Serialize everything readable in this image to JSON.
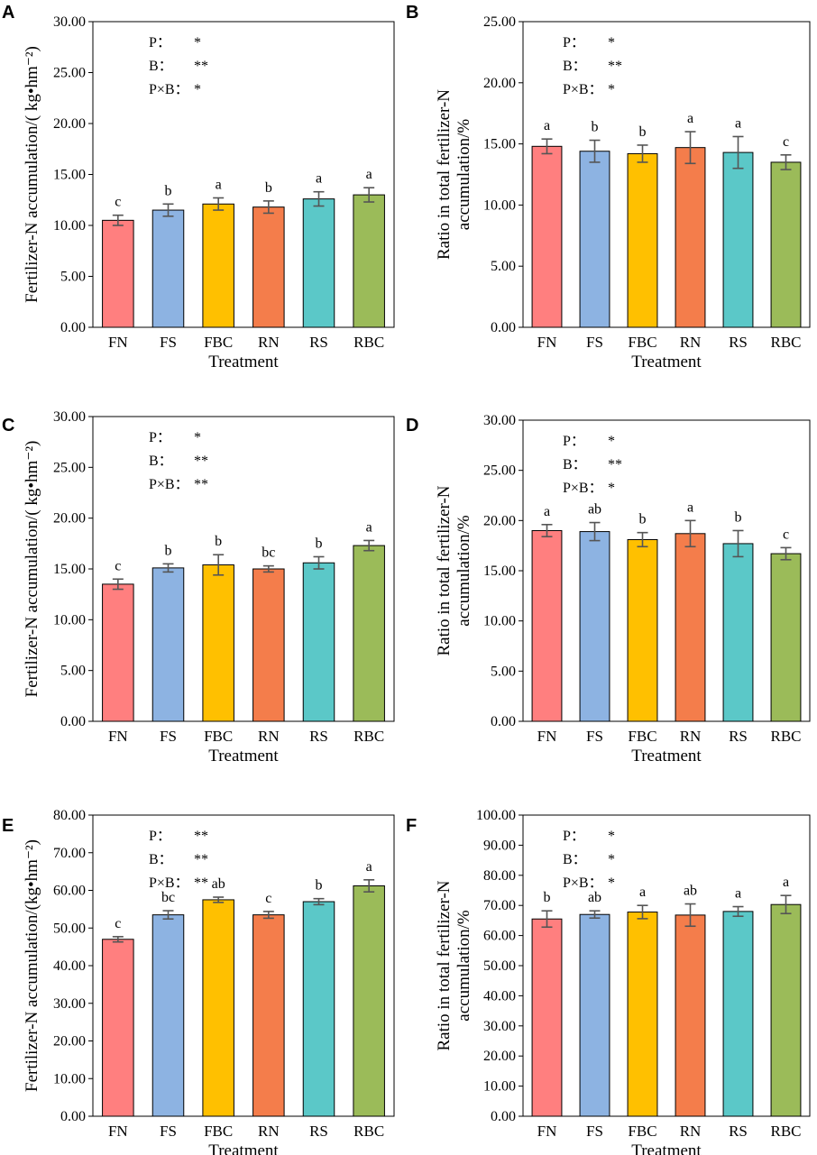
{
  "colors": {
    "FN": "#FF7F7F",
    "FS": "#8DB3E2",
    "FBC": "#FFC000",
    "RN": "#F47D4B",
    "RS": "#5BC8C8",
    "RBC": "#9BBB59",
    "error": "#555555",
    "frame": "#000000"
  },
  "chart_data": [
    {
      "panel": "A",
      "type": "bar",
      "categories": [
        "FN",
        "FS",
        "FBC",
        "RN",
        "RS",
        "RBC"
      ],
      "values": [
        10.5,
        11.5,
        12.1,
        11.8,
        12.6,
        13.0
      ],
      "errors": [
        0.5,
        0.6,
        0.6,
        0.6,
        0.7,
        0.7
      ],
      "letters": [
        "c",
        "b",
        "a",
        "b",
        "a",
        "a"
      ],
      "ylim": [
        0,
        30
      ],
      "yticks": [
        "0.00",
        "5.00",
        "10.00",
        "15.00",
        "20.00",
        "25.00",
        "30.00"
      ],
      "ylabel": "Fertilizer-N accumulation/( kg•hm⁻²)",
      "xlabel": "Treatment",
      "stats": [
        {
          "label": "P：",
          "value": "*"
        },
        {
          "label": "B：",
          "value": "**"
        },
        {
          "label": "P×B：",
          "value": "*"
        }
      ]
    },
    {
      "panel": "B",
      "type": "bar",
      "categories": [
        "FN",
        "FS",
        "FBC",
        "RN",
        "RS",
        "RBC"
      ],
      "values": [
        14.8,
        14.4,
        14.2,
        14.7,
        14.3,
        13.5
      ],
      "errors": [
        0.6,
        0.9,
        0.7,
        1.3,
        1.3,
        0.6
      ],
      "letters": [
        "a",
        "b",
        "b",
        "a",
        "a",
        "c"
      ],
      "ylim": [
        0,
        25
      ],
      "yticks": [
        "0.00",
        "5.00",
        "10.00",
        "15.00",
        "20.00",
        "25.00"
      ],
      "ylabel": "Ratio in total fertilizer-N accumulation/%",
      "xlabel": "Treatment",
      "stats": [
        {
          "label": "P：",
          "value": "*"
        },
        {
          "label": "B：",
          "value": "**"
        },
        {
          "label": "P×B：",
          "value": "*"
        }
      ]
    },
    {
      "panel": "C",
      "type": "bar",
      "categories": [
        "FN",
        "FS",
        "FBC",
        "RN",
        "RS",
        "RBC"
      ],
      "values": [
        13.5,
        15.1,
        15.4,
        15.0,
        15.6,
        17.3
      ],
      "errors": [
        0.5,
        0.4,
        1.0,
        0.3,
        0.6,
        0.5
      ],
      "letters": [
        "c",
        "b",
        "b",
        "bc",
        "b",
        "a"
      ],
      "ylim": [
        0,
        30
      ],
      "yticks": [
        "0.00",
        "5.00",
        "10.00",
        "15.00",
        "20.00",
        "25.00",
        "30.00"
      ],
      "ylabel": "Fertilizer-N accumulation/( kg•hm⁻²)",
      "xlabel": "Treatment",
      "stats": [
        {
          "label": "P：",
          "value": "*"
        },
        {
          "label": "B：",
          "value": "**"
        },
        {
          "label": "P×B：",
          "value": "**"
        }
      ]
    },
    {
      "panel": "D",
      "type": "bar",
      "categories": [
        "FN",
        "FS",
        "FBC",
        "RN",
        "RS",
        "RBC"
      ],
      "values": [
        19.0,
        18.9,
        18.1,
        18.7,
        17.7,
        16.7
      ],
      "errors": [
        0.6,
        0.9,
        0.7,
        1.3,
        1.3,
        0.6
      ],
      "letters": [
        "a",
        "ab",
        "b",
        "a",
        "b",
        "c"
      ],
      "ylim": [
        0,
        30
      ],
      "yticks": [
        "0.00",
        "5.00",
        "10.00",
        "15.00",
        "20.00",
        "25.00",
        "30.00"
      ],
      "ylabel": "Ratio in total fertilizer-N accumulation/%",
      "xlabel": "Treatment",
      "stats": [
        {
          "label": "P：",
          "value": "*"
        },
        {
          "label": "B：",
          "value": "**"
        },
        {
          "label": "P×B：",
          "value": "*"
        }
      ]
    },
    {
      "panel": "E",
      "type": "bar",
      "categories": [
        "FN",
        "FS",
        "FBC",
        "RN",
        "RS",
        "RBC"
      ],
      "values": [
        47.0,
        53.5,
        57.5,
        53.5,
        57.0,
        61.2
      ],
      "errors": [
        0.7,
        1.1,
        0.7,
        0.9,
        0.8,
        1.6
      ],
      "letters": [
        "c",
        "bc",
        "ab",
        "c",
        "b",
        "a"
      ],
      "ylim": [
        0,
        80
      ],
      "yticks": [
        "0.00",
        "10.00",
        "20.00",
        "30.00",
        "40.00",
        "50.00",
        "60.00",
        "70.00",
        "80.00"
      ],
      "ylabel": "Fertilizer-N accumulation/(kg•hm⁻²)",
      "xlabel": "Treatment",
      "stats": [
        {
          "label": "P：",
          "value": "**"
        },
        {
          "label": "B：",
          "value": "**"
        },
        {
          "label": "P×B：",
          "value": "**"
        }
      ]
    },
    {
      "panel": "F",
      "type": "bar",
      "categories": [
        "FN",
        "FS",
        "FBC",
        "RN",
        "RS",
        "RBC"
      ],
      "values": [
        65.5,
        67.0,
        67.8,
        66.8,
        68.0,
        70.3
      ],
      "errors": [
        2.7,
        1.2,
        2.2,
        3.7,
        1.6,
        3.0
      ],
      "letters": [
        "b",
        "ab",
        "a",
        "ab",
        "a",
        "a"
      ],
      "ylim": [
        0,
        100
      ],
      "yticks": [
        "0.00",
        "10.00",
        "20.00",
        "30.00",
        "40.00",
        "50.00",
        "60.00",
        "70.00",
        "80.00",
        "90.00",
        "100.00"
      ],
      "ylabel": "Ratio in total fertilizer-N accumulation/%",
      "xlabel": "Treatment",
      "stats": [
        {
          "label": "P：",
          "value": "*"
        },
        {
          "label": "B：",
          "value": "*"
        },
        {
          "label": "P×B：",
          "value": "*"
        }
      ]
    }
  ]
}
